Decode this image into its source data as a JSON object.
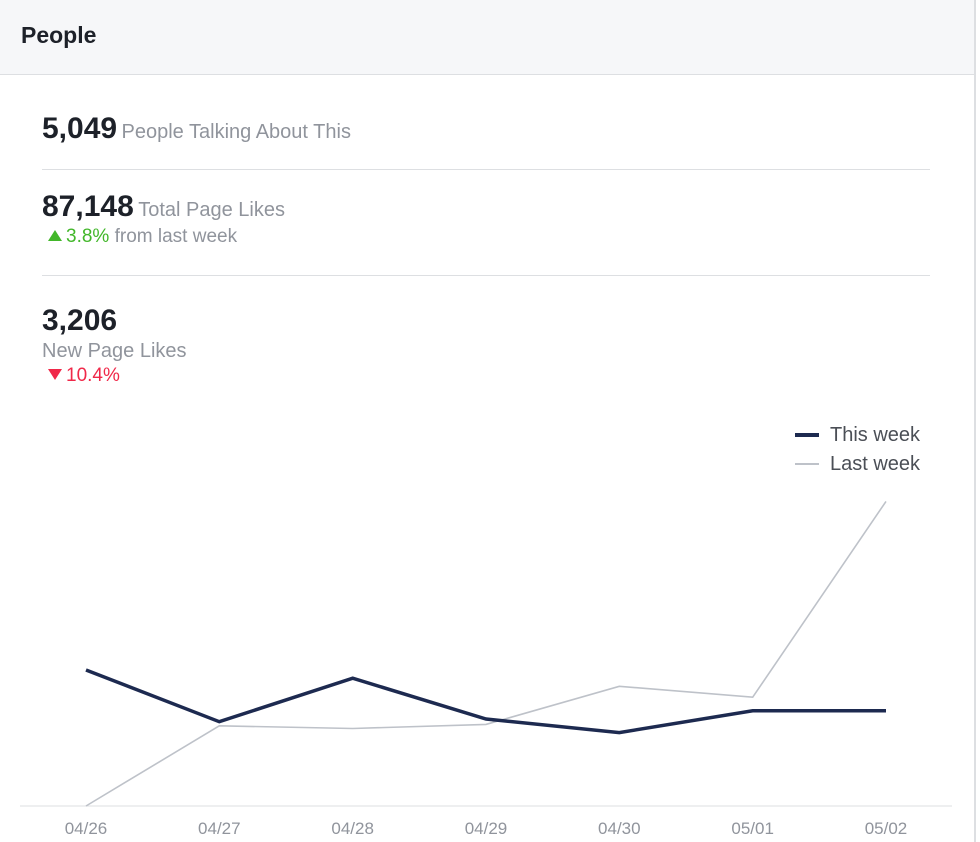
{
  "header": {
    "title": "People"
  },
  "stats": {
    "talking": {
      "value": "5,049",
      "label": "People Talking About This"
    },
    "total_likes": {
      "value": "87,148",
      "label": "Total Page Likes",
      "change": "3.8%",
      "change_suffix": "from last week"
    },
    "new_likes": {
      "value": "3,206",
      "label": "New Page Likes",
      "change": "10.4%"
    }
  },
  "colors": {
    "up": "#42b72a",
    "down": "#f02849",
    "this_week": "#1d2a50",
    "last_week": "#bec2c9"
  },
  "chart_data": {
    "type": "line",
    "categories": [
      "04/26",
      "04/27",
      "04/28",
      "04/29",
      "04/30",
      "05/01",
      "05/02"
    ],
    "series": [
      {
        "name": "This week",
        "values": [
          500,
          310,
          470,
          320,
          270,
          350,
          350
        ]
      },
      {
        "name": "Last week",
        "values": [
          0,
          295,
          285,
          300,
          440,
          400,
          1120
        ]
      }
    ],
    "ylim": [
      0,
      1250
    ],
    "legend": "top-right",
    "grid": false
  }
}
